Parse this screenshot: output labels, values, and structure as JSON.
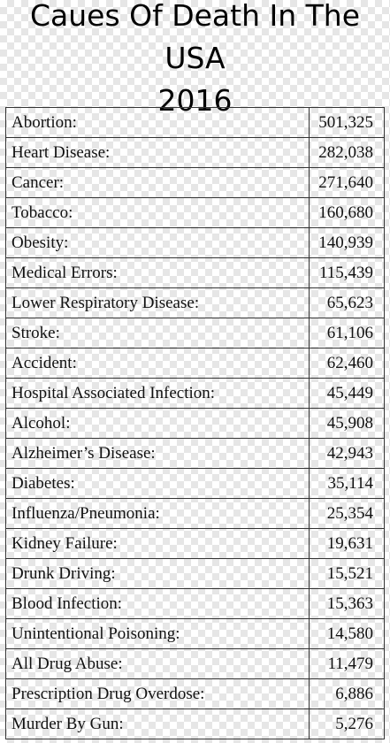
{
  "title": "Caues Of Death In The USA\n2016",
  "rows": [
    {
      "cause": "Abortion:",
      "count": "501,325"
    },
    {
      "cause": "Heart Disease:",
      "count": "282,038"
    },
    {
      "cause": "Cancer:",
      "count": "271,640"
    },
    {
      "cause": "Tobacco:",
      "count": "160,680"
    },
    {
      "cause": "Obesity:",
      "count": "140,939"
    },
    {
      "cause": "Medical Errors:",
      "count": "115,439"
    },
    {
      "cause": "Lower Respiratory Disease:",
      "count": "65,623"
    },
    {
      "cause": "Stroke:",
      "count": "61,106"
    },
    {
      "cause": "Accident:",
      "count": "62,460"
    },
    {
      "cause": "Hospital Associated Infection:",
      "count": "45,449"
    },
    {
      "cause": "Alcohol:",
      "count": "45,908"
    },
    {
      "cause": "Alzheimer’s Disease:",
      "count": "42,943"
    },
    {
      "cause": "Diabetes:",
      "count": "35,114"
    },
    {
      "cause": "Influenza/Pneumonia:",
      "count": "25,354"
    },
    {
      "cause": "Kidney Failure:",
      "count": "19,631"
    },
    {
      "cause": "Drunk Driving:",
      "count": "15,521"
    },
    {
      "cause": "Blood Infection:",
      "count": "15,363"
    },
    {
      "cause": "Unintentional Poisoning:",
      "count": "14,580"
    },
    {
      "cause": "All Drug Abuse:",
      "count": "11,479"
    },
    {
      "cause": "Prescription Drug Overdose:",
      "count": "6,886"
    },
    {
      "cause": "Murder By Gun:",
      "count": "5,276"
    }
  ]
}
